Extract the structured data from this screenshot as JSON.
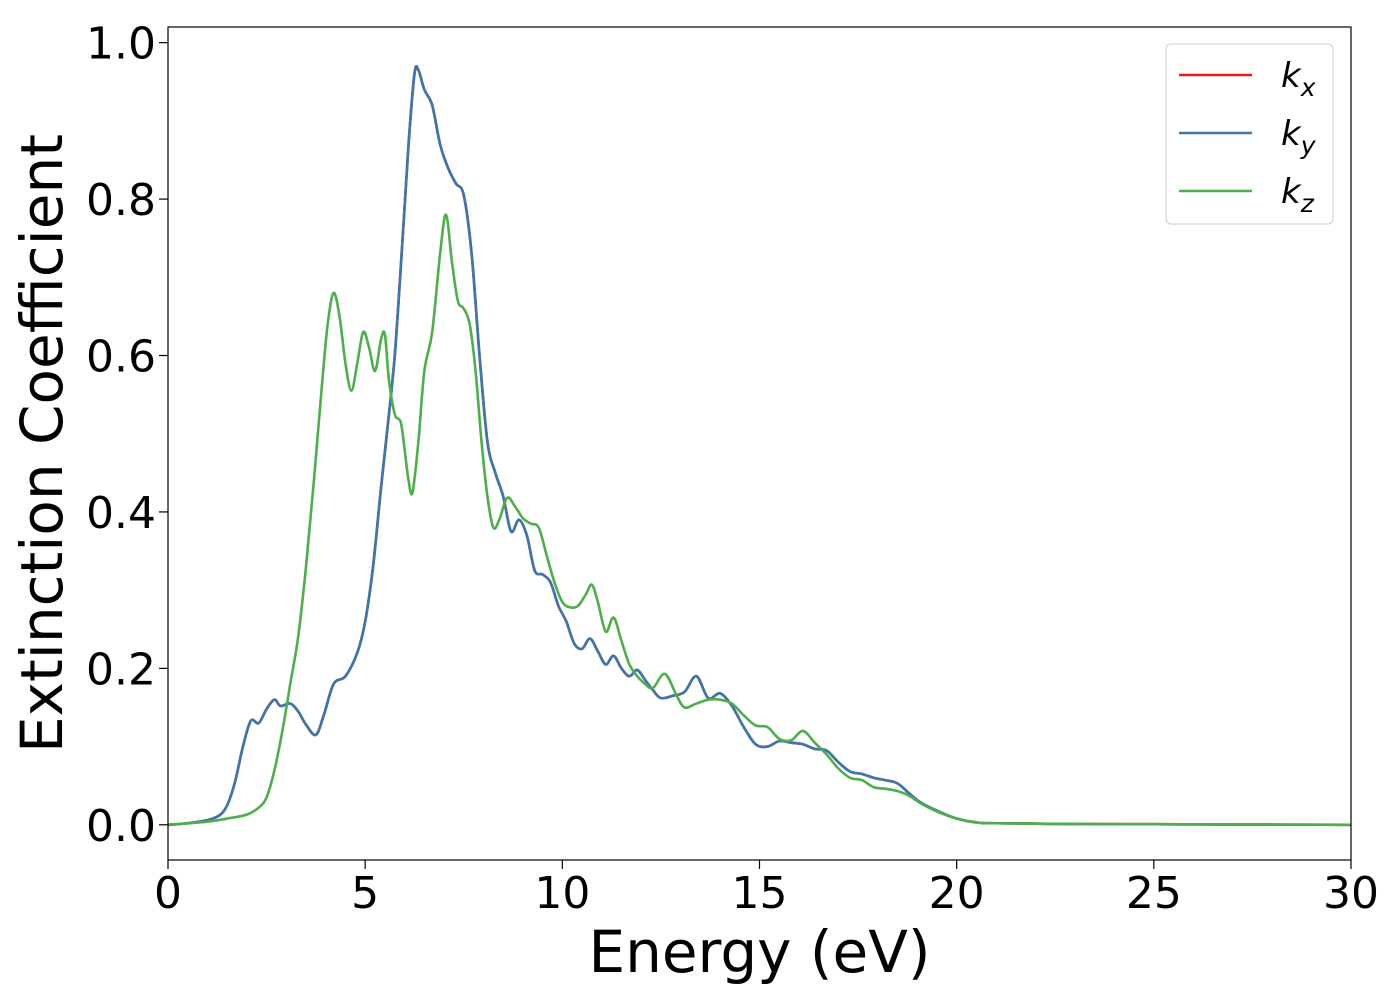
{
  "chart_data": {
    "type": "line",
    "title": "",
    "xlabel": "Energy (eV)",
    "ylabel": "Extinction Coefficient",
    "xlim": [
      0,
      30
    ],
    "ylim": [
      -0.045,
      1.02
    ],
    "xticks": [
      0,
      5,
      10,
      15,
      20,
      25,
      30
    ],
    "xtick_labels": [
      "0",
      "5",
      "10",
      "15",
      "20",
      "25",
      "30"
    ],
    "yticks": [
      0.0,
      0.2,
      0.4,
      0.6,
      0.8,
      1.0
    ],
    "ytick_labels": [
      "0.0",
      "0.2",
      "0.4",
      "0.6",
      "0.8",
      "1.0"
    ],
    "grid": false,
    "legend_position": "top-right",
    "series": [
      {
        "name": "k",
        "subscript": "x",
        "color": "#e41a1c",
        "points": [
          [
            0,
            0.0
          ],
          [
            0.5,
            0.002
          ],
          [
            1.0,
            0.006
          ],
          [
            1.3,
            0.012
          ],
          [
            1.5,
            0.025
          ],
          [
            1.7,
            0.055
          ],
          [
            1.9,
            0.1
          ],
          [
            2.1,
            0.133
          ],
          [
            2.3,
            0.13
          ],
          [
            2.5,
            0.148
          ],
          [
            2.7,
            0.16
          ],
          [
            2.85,
            0.152
          ],
          [
            3.1,
            0.155
          ],
          [
            3.3,
            0.145
          ],
          [
            3.5,
            0.128
          ],
          [
            3.75,
            0.115
          ],
          [
            3.95,
            0.14
          ],
          [
            4.2,
            0.18
          ],
          [
            4.5,
            0.19
          ],
          [
            4.8,
            0.22
          ],
          [
            5.0,
            0.26
          ],
          [
            5.2,
            0.33
          ],
          [
            5.4,
            0.43
          ],
          [
            5.55,
            0.5
          ],
          [
            5.75,
            0.6
          ],
          [
            5.95,
            0.75
          ],
          [
            6.1,
            0.87
          ],
          [
            6.25,
            0.96
          ],
          [
            6.35,
            0.965
          ],
          [
            6.5,
            0.94
          ],
          [
            6.7,
            0.92
          ],
          [
            6.9,
            0.87
          ],
          [
            7.1,
            0.84
          ],
          [
            7.3,
            0.82
          ],
          [
            7.5,
            0.805
          ],
          [
            7.7,
            0.73
          ],
          [
            7.9,
            0.6
          ],
          [
            8.1,
            0.49
          ],
          [
            8.3,
            0.45
          ],
          [
            8.5,
            0.42
          ],
          [
            8.7,
            0.375
          ],
          [
            8.9,
            0.39
          ],
          [
            9.1,
            0.37
          ],
          [
            9.3,
            0.325
          ],
          [
            9.5,
            0.32
          ],
          [
            9.7,
            0.31
          ],
          [
            9.9,
            0.28
          ],
          [
            10.1,
            0.26
          ],
          [
            10.3,
            0.232
          ],
          [
            10.5,
            0.225
          ],
          [
            10.7,
            0.238
          ],
          [
            10.9,
            0.222
          ],
          [
            11.1,
            0.205
          ],
          [
            11.3,
            0.216
          ],
          [
            11.5,
            0.2
          ],
          [
            11.7,
            0.19
          ],
          [
            11.9,
            0.198
          ],
          [
            12.1,
            0.185
          ],
          [
            12.3,
            0.172
          ],
          [
            12.5,
            0.162
          ],
          [
            12.8,
            0.165
          ],
          [
            13.1,
            0.17
          ],
          [
            13.4,
            0.19
          ],
          [
            13.7,
            0.162
          ],
          [
            14.0,
            0.168
          ],
          [
            14.3,
            0.152
          ],
          [
            14.6,
            0.125
          ],
          [
            14.9,
            0.103
          ],
          [
            15.2,
            0.1
          ],
          [
            15.5,
            0.107
          ],
          [
            15.8,
            0.105
          ],
          [
            16.1,
            0.103
          ],
          [
            16.4,
            0.097
          ],
          [
            16.7,
            0.095
          ],
          [
            17.0,
            0.08
          ],
          [
            17.3,
            0.068
          ],
          [
            17.6,
            0.065
          ],
          [
            17.9,
            0.06
          ],
          [
            18.2,
            0.057
          ],
          [
            18.5,
            0.053
          ],
          [
            18.8,
            0.04
          ],
          [
            19.1,
            0.028
          ],
          [
            19.5,
            0.018
          ],
          [
            20.0,
            0.008
          ],
          [
            20.5,
            0.003
          ],
          [
            21.0,
            0.002
          ],
          [
            23.0,
            0.001
          ],
          [
            25.0,
            0.0008
          ],
          [
            27.0,
            0.0004
          ],
          [
            30.0,
            0.0
          ]
        ]
      },
      {
        "name": "k",
        "subscript": "y",
        "color": "#3a76b0",
        "points": [
          [
            0,
            0.0
          ],
          [
            0.5,
            0.002
          ],
          [
            1.0,
            0.006
          ],
          [
            1.3,
            0.012
          ],
          [
            1.5,
            0.025
          ],
          [
            1.7,
            0.055
          ],
          [
            1.9,
            0.1
          ],
          [
            2.1,
            0.133
          ],
          [
            2.3,
            0.13
          ],
          [
            2.5,
            0.148
          ],
          [
            2.7,
            0.16
          ],
          [
            2.85,
            0.152
          ],
          [
            3.1,
            0.155
          ],
          [
            3.3,
            0.145
          ],
          [
            3.5,
            0.128
          ],
          [
            3.75,
            0.115
          ],
          [
            3.95,
            0.14
          ],
          [
            4.2,
            0.18
          ],
          [
            4.5,
            0.19
          ],
          [
            4.8,
            0.22
          ],
          [
            5.0,
            0.26
          ],
          [
            5.2,
            0.33
          ],
          [
            5.4,
            0.43
          ],
          [
            5.55,
            0.5
          ],
          [
            5.75,
            0.6
          ],
          [
            5.95,
            0.75
          ],
          [
            6.1,
            0.87
          ],
          [
            6.25,
            0.96
          ],
          [
            6.35,
            0.965
          ],
          [
            6.5,
            0.94
          ],
          [
            6.7,
            0.92
          ],
          [
            6.9,
            0.87
          ],
          [
            7.1,
            0.84
          ],
          [
            7.3,
            0.82
          ],
          [
            7.5,
            0.805
          ],
          [
            7.7,
            0.73
          ],
          [
            7.9,
            0.6
          ],
          [
            8.1,
            0.49
          ],
          [
            8.3,
            0.45
          ],
          [
            8.5,
            0.42
          ],
          [
            8.7,
            0.375
          ],
          [
            8.9,
            0.39
          ],
          [
            9.1,
            0.37
          ],
          [
            9.3,
            0.325
          ],
          [
            9.5,
            0.32
          ],
          [
            9.7,
            0.31
          ],
          [
            9.9,
            0.28
          ],
          [
            10.1,
            0.26
          ],
          [
            10.3,
            0.232
          ],
          [
            10.5,
            0.225
          ],
          [
            10.7,
            0.238
          ],
          [
            10.9,
            0.222
          ],
          [
            11.1,
            0.205
          ],
          [
            11.3,
            0.216
          ],
          [
            11.5,
            0.2
          ],
          [
            11.7,
            0.19
          ],
          [
            11.9,
            0.198
          ],
          [
            12.1,
            0.185
          ],
          [
            12.3,
            0.172
          ],
          [
            12.5,
            0.162
          ],
          [
            12.8,
            0.165
          ],
          [
            13.1,
            0.17
          ],
          [
            13.4,
            0.19
          ],
          [
            13.7,
            0.162
          ],
          [
            14.0,
            0.168
          ],
          [
            14.3,
            0.152
          ],
          [
            14.6,
            0.125
          ],
          [
            14.9,
            0.103
          ],
          [
            15.2,
            0.1
          ],
          [
            15.5,
            0.107
          ],
          [
            15.8,
            0.105
          ],
          [
            16.1,
            0.103
          ],
          [
            16.4,
            0.097
          ],
          [
            16.7,
            0.095
          ],
          [
            17.0,
            0.08
          ],
          [
            17.3,
            0.068
          ],
          [
            17.6,
            0.065
          ],
          [
            17.9,
            0.06
          ],
          [
            18.2,
            0.057
          ],
          [
            18.5,
            0.053
          ],
          [
            18.8,
            0.04
          ],
          [
            19.1,
            0.028
          ],
          [
            19.5,
            0.018
          ],
          [
            20.0,
            0.008
          ],
          [
            20.5,
            0.003
          ],
          [
            21.0,
            0.002
          ],
          [
            23.0,
            0.001
          ],
          [
            25.0,
            0.0008
          ],
          [
            27.0,
            0.0004
          ],
          [
            30.0,
            0.0
          ]
        ]
      },
      {
        "name": "k",
        "subscript": "z",
        "color": "#4daf4a",
        "points": [
          [
            0,
            0.0
          ],
          [
            1.0,
            0.004
          ],
          [
            1.5,
            0.008
          ],
          [
            2.0,
            0.013
          ],
          [
            2.3,
            0.022
          ],
          [
            2.5,
            0.035
          ],
          [
            2.7,
            0.07
          ],
          [
            2.9,
            0.12
          ],
          [
            3.1,
            0.18
          ],
          [
            3.3,
            0.24
          ],
          [
            3.5,
            0.33
          ],
          [
            3.7,
            0.44
          ],
          [
            3.9,
            0.56
          ],
          [
            4.05,
            0.64
          ],
          [
            4.2,
            0.68
          ],
          [
            4.35,
            0.65
          ],
          [
            4.5,
            0.59
          ],
          [
            4.65,
            0.555
          ],
          [
            4.8,
            0.59
          ],
          [
            4.95,
            0.63
          ],
          [
            5.1,
            0.61
          ],
          [
            5.25,
            0.58
          ],
          [
            5.4,
            0.62
          ],
          [
            5.5,
            0.627
          ],
          [
            5.6,
            0.57
          ],
          [
            5.75,
            0.525
          ],
          [
            5.9,
            0.515
          ],
          [
            6.0,
            0.48
          ],
          [
            6.1,
            0.44
          ],
          [
            6.2,
            0.425
          ],
          [
            6.35,
            0.49
          ],
          [
            6.5,
            0.58
          ],
          [
            6.7,
            0.63
          ],
          [
            6.9,
            0.73
          ],
          [
            7.05,
            0.78
          ],
          [
            7.2,
            0.72
          ],
          [
            7.35,
            0.67
          ],
          [
            7.5,
            0.66
          ],
          [
            7.65,
            0.64
          ],
          [
            7.8,
            0.58
          ],
          [
            7.95,
            0.49
          ],
          [
            8.1,
            0.42
          ],
          [
            8.25,
            0.38
          ],
          [
            8.4,
            0.39
          ],
          [
            8.6,
            0.418
          ],
          [
            8.8,
            0.407
          ],
          [
            9.0,
            0.392
          ],
          [
            9.2,
            0.385
          ],
          [
            9.4,
            0.38
          ],
          [
            9.6,
            0.345
          ],
          [
            9.8,
            0.31
          ],
          [
            10.0,
            0.285
          ],
          [
            10.2,
            0.278
          ],
          [
            10.4,
            0.28
          ],
          [
            10.6,
            0.295
          ],
          [
            10.75,
            0.307
          ],
          [
            10.9,
            0.285
          ],
          [
            11.1,
            0.247
          ],
          [
            11.3,
            0.265
          ],
          [
            11.5,
            0.235
          ],
          [
            11.7,
            0.205
          ],
          [
            11.9,
            0.19
          ],
          [
            12.1,
            0.18
          ],
          [
            12.3,
            0.175
          ],
          [
            12.6,
            0.193
          ],
          [
            12.9,
            0.165
          ],
          [
            13.1,
            0.15
          ],
          [
            13.4,
            0.155
          ],
          [
            13.7,
            0.16
          ],
          [
            14.0,
            0.16
          ],
          [
            14.3,
            0.155
          ],
          [
            14.6,
            0.14
          ],
          [
            14.9,
            0.127
          ],
          [
            15.2,
            0.125
          ],
          [
            15.5,
            0.11
          ],
          [
            15.8,
            0.108
          ],
          [
            16.1,
            0.12
          ],
          [
            16.4,
            0.105
          ],
          [
            16.7,
            0.09
          ],
          [
            17.0,
            0.072
          ],
          [
            17.3,
            0.06
          ],
          [
            17.6,
            0.057
          ],
          [
            17.9,
            0.048
          ],
          [
            18.2,
            0.046
          ],
          [
            18.5,
            0.043
          ],
          [
            18.8,
            0.037
          ],
          [
            19.1,
            0.027
          ],
          [
            19.5,
            0.017
          ],
          [
            20.0,
            0.008
          ],
          [
            20.5,
            0.003
          ],
          [
            21.0,
            0.002
          ],
          [
            23.0,
            0.001
          ],
          [
            25.0,
            0.0008
          ],
          [
            27.0,
            0.0004
          ],
          [
            30.0,
            0.0
          ]
        ]
      }
    ]
  }
}
